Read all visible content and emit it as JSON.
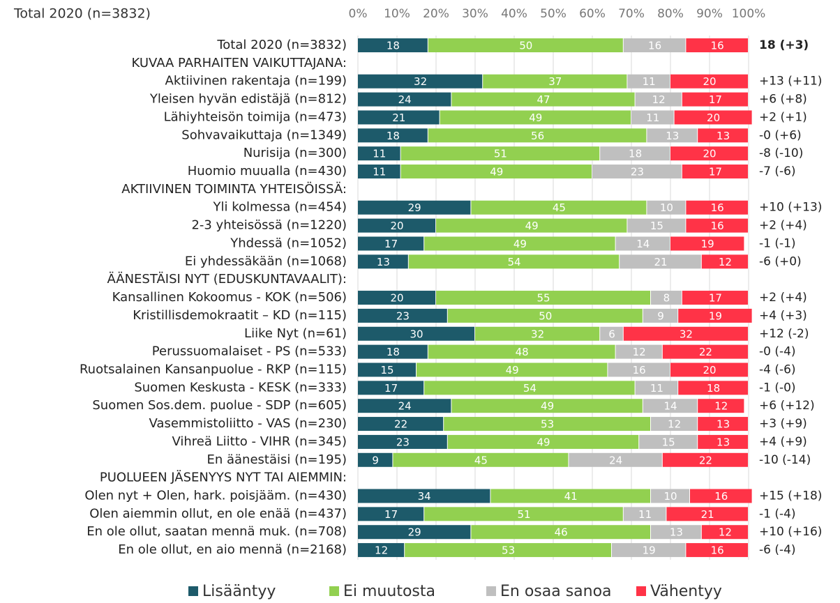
{
  "chart_data": {
    "type": "stacked-bar-horizontal",
    "title": "Total 2020 (n=3832)",
    "categories": [
      "Total 2020 (n=3832)",
      "KUVAA PARHAITEN VAIKUTTAJANA:",
      "Aktiivinen rakentaja (n=199)",
      "Yleisen hyvän edistäjä (n=812)",
      "Lähiyhteisön toimija (n=473)",
      "Sohvavaikuttaja (n=1349)",
      "Nurisija (n=300)",
      "Huomio muualla (n=430)",
      "AKTIIVINEN TOIMINTA YHTEISÖISSÄ:",
      "Yli kolmessa (n=454)",
      "2-3 yhteisössä (n=1220)",
      "Yhdessä (n=1052)",
      "Ei yhdessäkään (n=1068)",
      "ÄÄNESTÄISI NYT (EDUSKUNTAVAALIT):",
      "Kansallinen Kokoomus - KOK (n=506)",
      "Kristillisdemokraatit – KD (n=115)",
      "Liike Nyt (n=61)",
      "Perussuomalaiset - PS (n=533)",
      "Ruotsalainen Kansanpuolue - RKP (n=115)",
      "Suomen Keskusta - KESK (n=333)",
      "Suomen Sos.dem. puolue - SDP (n=605)",
      "Vasemmistoliitto - VAS (n=230)",
      "Vihreä Liitto - VIHR (n=345)",
      "En äänestäisi (n=195)",
      "PUOLUEEN JÄSENYYS NYT TAI AIEMMIN:",
      "Olen nyt + Olen, hark. poisjääm. (n=430)",
      "Olen aiemmin ollut, en ole enää (n=437)",
      "En ole ollut, saatan mennä muk. (n=708)",
      "En ole ollut, en aio mennä (n=2168)"
    ],
    "series": [
      {
        "name": "Lisääntyy",
        "color": "#1d5a6a",
        "values": [
          18,
          null,
          32,
          24,
          21,
          18,
          11,
          11,
          null,
          29,
          20,
          17,
          13,
          null,
          20,
          23,
          30,
          18,
          15,
          17,
          24,
          22,
          23,
          9,
          null,
          34,
          17,
          29,
          12
        ]
      },
      {
        "name": "Ei muutosta",
        "color": "#92d050",
        "values": [
          50,
          null,
          37,
          47,
          49,
          56,
          51,
          49,
          null,
          45,
          49,
          49,
          54,
          null,
          55,
          50,
          32,
          48,
          49,
          54,
          49,
          53,
          49,
          45,
          null,
          41,
          51,
          46,
          53
        ]
      },
      {
        "name": "En osaa sanoa",
        "color": "#bfbfbf",
        "values": [
          16,
          null,
          11,
          12,
          11,
          13,
          18,
          23,
          null,
          10,
          15,
          14,
          21,
          null,
          8,
          9,
          6,
          12,
          16,
          11,
          14,
          12,
          15,
          24,
          null,
          10,
          11,
          13,
          19
        ]
      },
      {
        "name": "Vähentyy",
        "color": "#ff3347",
        "values": [
          16,
          null,
          20,
          17,
          20,
          13,
          20,
          17,
          null,
          16,
          16,
          19,
          12,
          null,
          17,
          19,
          32,
          22,
          20,
          18,
          12,
          13,
          13,
          22,
          null,
          16,
          21,
          12,
          16
        ]
      }
    ],
    "annotations": [
      "18 (+3)",
      null,
      "+13 (+11)",
      "+6 (+8)",
      "+2 (+1)",
      "-0 (+6)",
      "-8 (-10)",
      "-7 (-6)",
      null,
      "+10 (+13)",
      "+2 (+4)",
      "-1 (-1)",
      "-6 (+0)",
      null,
      "+2 (+4)",
      "+4 (+3)",
      "+12 (-2)",
      "-0 (-4)",
      "-4 (-6)",
      "-1 (-0)",
      "+6 (+12)",
      "+3 (+9)",
      "+4 (+9)",
      "-10 (-14)",
      null,
      "+15 (+18)",
      "-1 (-4)",
      "+10 (+16)",
      "-6 (-4)"
    ],
    "xlim": [
      0,
      100
    ],
    "xticks": [
      {
        "value": 0,
        "label": "0%"
      },
      {
        "value": 10,
        "label": "10%"
      },
      {
        "value": 20,
        "label": "20%"
      },
      {
        "value": 30,
        "label": "30%"
      },
      {
        "value": 40,
        "label": "40%"
      },
      {
        "value": 50,
        "label": "50%"
      },
      {
        "value": 60,
        "label": "60%"
      },
      {
        "value": 70,
        "label": "70%"
      },
      {
        "value": 80,
        "label": "80%"
      },
      {
        "value": 90,
        "label": "90%"
      },
      {
        "value": 100,
        "label": "100%"
      }
    ],
    "grid": true,
    "legend": "bottom"
  }
}
